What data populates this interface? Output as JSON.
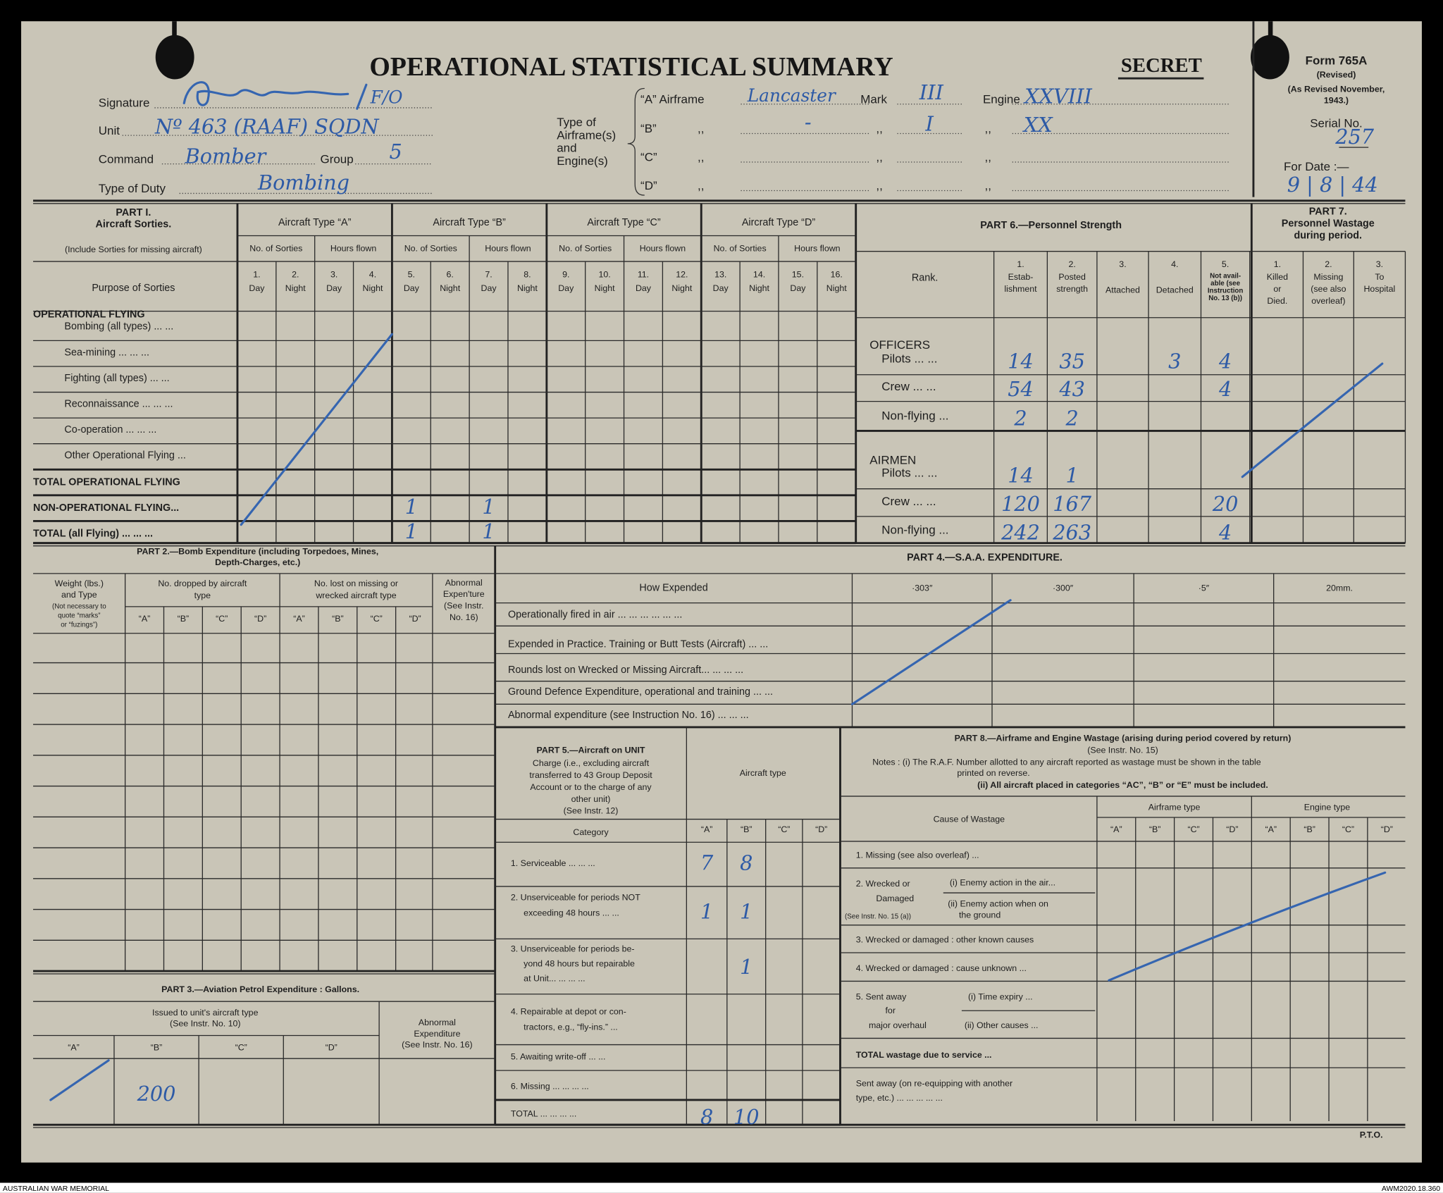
{
  "header": {
    "title": "OPERATIONAL  STATISTICAL  SUMMARY",
    "secret": "SECRET",
    "signature_label": "Signature",
    "signature_rank": "F/O",
    "unit_label": "Unit",
    "unit_value": "Nº 463 (RAAF) SQDN",
    "command_label": "Command",
    "command_value": "Bomber",
    "group_label": "Group",
    "group_value": "5",
    "duty_label": "Type of Duty",
    "duty_value": "Bombing",
    "type_label": [
      "Type of",
      "Airframe(s)",
      "and",
      "Engine(s)"
    ],
    "airframes": [
      {
        "key": "“A” Airframe",
        "airframe": "Lancaster",
        "mark_label": "Mark",
        "mark": "III",
        "engine_label": "Engine",
        "engine": "XXVIII"
      },
      {
        "key": "“B”",
        "ditto": ",,",
        "airframe": "-",
        "mark": "I",
        "engine": "XX"
      },
      {
        "key": "“C”",
        "ditto": ",,"
      },
      {
        "key": "“D”",
        "ditto": ",,"
      }
    ]
  },
  "form_box": {
    "form": "Form 765A",
    "revised": "(Revised)",
    "as_revised": "(As Revised November,",
    "year": "1943.)",
    "serial_label": "Serial No.",
    "serial": "257",
    "date_label": "For Date :—",
    "date": "9 | 8 | 44"
  },
  "part1": {
    "title": "PART I.",
    "subtitle": "Aircraft Sorties.",
    "note": "(Include Sorties for missing aircraft)",
    "purpose_label": "Purpose of Sorties",
    "types": [
      "Aircraft Type “A”",
      "Aircraft Type “B”",
      "Aircraft Type “C”",
      "Aircraft Type “D”"
    ],
    "sub_headers": [
      "No. of Sorties",
      "Hours flown"
    ],
    "col_numbers": [
      "1.",
      "2.",
      "3.",
      "4.",
      "5.",
      "6.",
      "7.",
      "8.",
      "9.",
      "10.",
      "11.",
      "12.",
      "13.",
      "14.",
      "15.",
      "16."
    ],
    "day_night": [
      "Day",
      "Night"
    ],
    "section_heading": "OPERATIONAL FLYING",
    "rows": [
      "Bombing (all types)   ...   ...",
      "Sea-mining   ...   ...   ...",
      "Fighting (all types)   ...   ...",
      "Reconnaissance ...   ...   ...",
      "Co-operation   ...   ...   ...",
      "Other Operational Flying   ..."
    ],
    "total_operational": "TOTAL OPERATIONAL FLYING",
    "non_operational": "NON-OPERATIONAL FLYING...",
    "total_all": "TOTAL (all Flying) ...   ...   ...",
    "entries": {
      "non_operational": {
        "col5": "1",
        "col7": "1"
      },
      "total_all": {
        "col5": "1",
        "col7": "1"
      }
    }
  },
  "part6": {
    "title": "PART 6.—Personnel Strength",
    "rank_label": "Rank.",
    "columns": [
      {
        "num": "1.",
        "lines": [
          "Estab-",
          "lishment"
        ]
      },
      {
        "num": "2.",
        "lines": [
          "Posted",
          "strength"
        ]
      },
      {
        "num": "3.",
        "lines": [
          "Attached"
        ]
      },
      {
        "num": "4.",
        "lines": [
          "Detached"
        ]
      },
      {
        "num": "5.",
        "lines": [
          "Not avail-",
          "able (see",
          "Instruction",
          "No. 13 (b))"
        ]
      }
    ],
    "groups": [
      "OFFICERS",
      "AIRMEN"
    ],
    "rows": [
      {
        "rank": "Pilots   ...   ...",
        "values": [
          "14",
          "35",
          "",
          "3",
          "4"
        ]
      },
      {
        "rank": "Crew   ...   ...",
        "values": [
          "54",
          "43",
          "",
          "",
          "4"
        ]
      },
      {
        "rank": "Non-flying   ...",
        "values": [
          "2",
          "2",
          "",
          "",
          ""
        ]
      },
      {
        "rank": "Pilots   ...   ...",
        "values": [
          "14",
          "1",
          "",
          "",
          ""
        ]
      },
      {
        "rank": "Crew   ...   ...",
        "values": [
          "120",
          "167",
          "",
          "",
          "20"
        ]
      },
      {
        "rank": "Non-flying   ...",
        "values": [
          "242",
          "263",
          "",
          "",
          "4"
        ]
      }
    ]
  },
  "part7": {
    "title": "PART 7.",
    "subtitle": "Personnel Wastage",
    "subtitle2": "during period.",
    "columns": [
      {
        "num": "1.",
        "lines": [
          "Killed",
          "or",
          "Died."
        ]
      },
      {
        "num": "2.",
        "lines": [
          "Missing",
          "(see also",
          "overleaf)"
        ]
      },
      {
        "num": "3.",
        "lines": [
          "To",
          "Hospital"
        ]
      }
    ]
  },
  "part2": {
    "title": "PART 2.—Bomb Expenditure (including Torpedoes, Mines,",
    "title2": "Depth-Charges, etc.)",
    "weight_lines": [
      "Weight (lbs.)",
      "and Type"
    ],
    "weight_note": [
      "(Not necessary to",
      "quote “marks”",
      "or “fuzings”)"
    ],
    "dropped": [
      "No. dropped by aircraft",
      "type"
    ],
    "lost": [
      "No. lost on missing or",
      "wrecked aircraft type"
    ],
    "abnormal": [
      "Abnormal",
      "Expen'ture",
      "(See Instr.",
      "No. 16)"
    ],
    "types": [
      "“A”",
      "“B”",
      "“C”",
      "“D”"
    ]
  },
  "part3": {
    "title": "PART 3.—Aviation Petrol Expenditure : Gallons.",
    "issued": [
      "Issued to unit's aircraft type",
      "(See Instr. No. 10)"
    ],
    "abnormal": [
      "Abnormal",
      "Expenditure",
      "(See Instr. No. 16)"
    ],
    "types": [
      "“A”",
      "“B”",
      "“C”",
      "“D”"
    ],
    "values": {
      "B": "200"
    }
  },
  "part4": {
    "title": "PART 4.—S.A.A. EXPENDITURE.",
    "how_label": "How Expended",
    "calibres": [
      "·303″",
      "·300″",
      "·5″",
      "20mm."
    ],
    "rows": [
      "Operationally fired in air   ...   ...   ...   ...   ...   ...",
      "Expended in Practice. Training or Butt Tests (Aircraft) ...   ...",
      "Rounds lost on Wrecked or Missing Aircraft...   ...   ...   ...",
      "Ground Defence Expenditure, operational and training   ...   ...",
      "Abnormal expenditure (see Instruction No. 16)   ...   ...   ..."
    ]
  },
  "part5": {
    "title_lines": [
      "PART 5.—Aircraft on UNIT",
      "Charge (i.e., excluding aircraft",
      "transferred to 43 Group Deposit",
      "Account or to the charge of any",
      "other unit)",
      "(See Instr. 12)"
    ],
    "aircraft_type": "Aircraft type",
    "category_label": "Category",
    "types": [
      "“A”",
      "“B”",
      "“C”",
      "“D”"
    ],
    "rows": [
      {
        "lines": [
          "1. Serviceable   ...   ...   ..."
        ],
        "values": [
          "7",
          "8",
          "",
          ""
        ]
      },
      {
        "lines": [
          "2. Unserviceable for periods NOT",
          "exceeding 48 hours   ...   ..."
        ],
        "values": [
          "1",
          "1",
          "",
          ""
        ]
      },
      {
        "lines": [
          "3. Unserviceable for periods be-",
          "yond 48 hours but repairable",
          "at Unit...   ...   ...   ..."
        ],
        "values": [
          "",
          "1",
          "",
          ""
        ]
      },
      {
        "lines": [
          "4. Repairable at depot or con-",
          "tractors, e.g., “fly-ins.”   ..."
        ],
        "values": [
          "",
          "",
          "",
          ""
        ]
      },
      {
        "lines": [
          "5. Awaiting write-off   ...   ..."
        ],
        "values": [
          "",
          "",
          "",
          ""
        ]
      },
      {
        "lines": [
          "6. Missing ...   ...   ...   ..."
        ],
        "values": [
          "",
          "",
          "",
          ""
        ]
      },
      {
        "lines": [
          "TOTAL   ...   ...   ...   ..."
        ],
        "values": [
          "8",
          "10",
          "",
          ""
        ]
      }
    ]
  },
  "part8": {
    "title": "PART 8.—Airframe and Engine Wastage (arising during period covered by return)",
    "see": "(See Instr. No. 15)",
    "note1": "Notes :  (i) The R.A.F. Number allotted to any aircraft reported as wastage must be shown in the table",
    "note1b": "printed on reverse.",
    "note2": "(ii) All aircraft placed in categories “AC”, “B” or “E” must be included.",
    "cause_label": "Cause of Wastage",
    "airframe_type": "Airframe type",
    "engine_type": "Engine type",
    "types": [
      "“A”",
      "“B”",
      "“C”",
      "“D”"
    ],
    "missing": "1. Missing (see also overleaf)   ...",
    "wrecked": [
      "2. Wrecked or",
      "Damaged",
      "(See Instr. No. 15 (a))"
    ],
    "wrecked_sub": [
      "(i) Enemy action in the air...",
      "(ii) Enemy action when on",
      "the ground"
    ],
    "other_known": "3. Wrecked or damaged : other known causes",
    "unknown": "4. Wrecked or damaged : cause unknown   ...",
    "sent": [
      "5. Sent away",
      "for",
      "major overhaul"
    ],
    "sent_sub": [
      "(i) Time expiry   ...",
      "(ii) Other causes   ..."
    ],
    "total": "TOTAL wastage due to service   ...",
    "re_equip": [
      "Sent away (on re-equipping with another",
      "type, etc.)   ...   ...   ...   ...   ..."
    ]
  },
  "pto": "P.T.O.",
  "footer": {
    "left": "AUSTRALIAN WAR MEMORIAL",
    "right": "AWM2020.18.360"
  },
  "colors": {
    "paper": "#c9c5b7",
    "ink": "#2d5aa6",
    "print": "#1e1e1e"
  }
}
